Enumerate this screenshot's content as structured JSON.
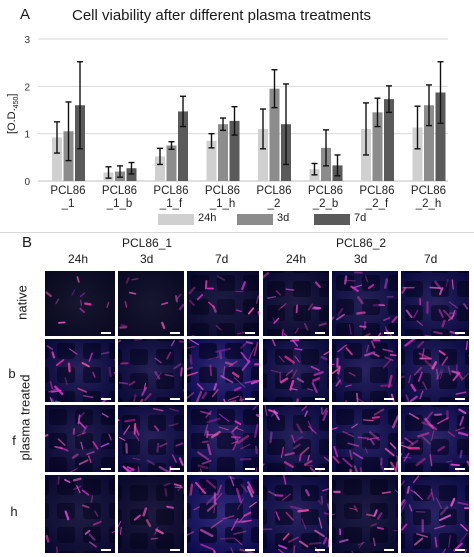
{
  "panel_a": {
    "letter": "A",
    "title": "Cell viability after different plasma treatments",
    "ylabel_main": "[O.D.",
    "ylabel_sub": "450",
    "ylabel_end": "]"
  },
  "chart_data": {
    "type": "bar",
    "title": "Cell viability after different plasma treatments",
    "ylabel": "[O.D.450]",
    "xlabel": "",
    "ylim": [
      0,
      3
    ],
    "yticks": [
      "0",
      "1",
      "2",
      "3"
    ],
    "grid": true,
    "legend_position": "bottom",
    "categories": [
      [
        "PCL86",
        "_1"
      ],
      [
        "PCL86",
        "_1_b"
      ],
      [
        "PCL86",
        "_1_f"
      ],
      [
        "PCL86",
        "_1_h"
      ],
      [
        "PCL86",
        "_2"
      ],
      [
        "PCL86",
        "_2_b"
      ],
      [
        "PCL86",
        "_2_f"
      ],
      [
        "PCL86",
        "_2_h"
      ]
    ],
    "series": [
      {
        "name": "24h",
        "color": "#d0d0d0",
        "values": [
          0.92,
          0.18,
          0.52,
          0.85,
          1.1,
          0.25,
          1.1,
          1.13
        ],
        "errors": [
          0.33,
          0.12,
          0.17,
          0.15,
          0.42,
          0.12,
          0.55,
          0.45
        ]
      },
      {
        "name": "3d",
        "color": "#8c8c8c",
        "values": [
          1.05,
          0.2,
          0.75,
          1.2,
          1.95,
          0.7,
          1.45,
          1.6
        ],
        "errors": [
          0.62,
          0.12,
          0.08,
          0.13,
          0.4,
          0.38,
          0.3,
          0.43
        ]
      },
      {
        "name": "7d",
        "color": "#5a5a5a",
        "values": [
          1.6,
          0.27,
          1.47,
          1.27,
          1.2,
          0.33,
          1.73,
          1.87
        ],
        "errors": [
          0.92,
          0.12,
          0.32,
          0.3,
          0.85,
          0.22,
          0.28,
          0.65
        ]
      }
    ]
  },
  "panel_b": {
    "letter": "B",
    "groups": [
      "PCL86_1",
      "PCL86_2"
    ],
    "columns": [
      "24h",
      "3d",
      "7d",
      "24h",
      "3d",
      "7d"
    ],
    "row_labels": [
      "native",
      "b",
      "f",
      "h"
    ],
    "side_label": "plasma treated"
  }
}
